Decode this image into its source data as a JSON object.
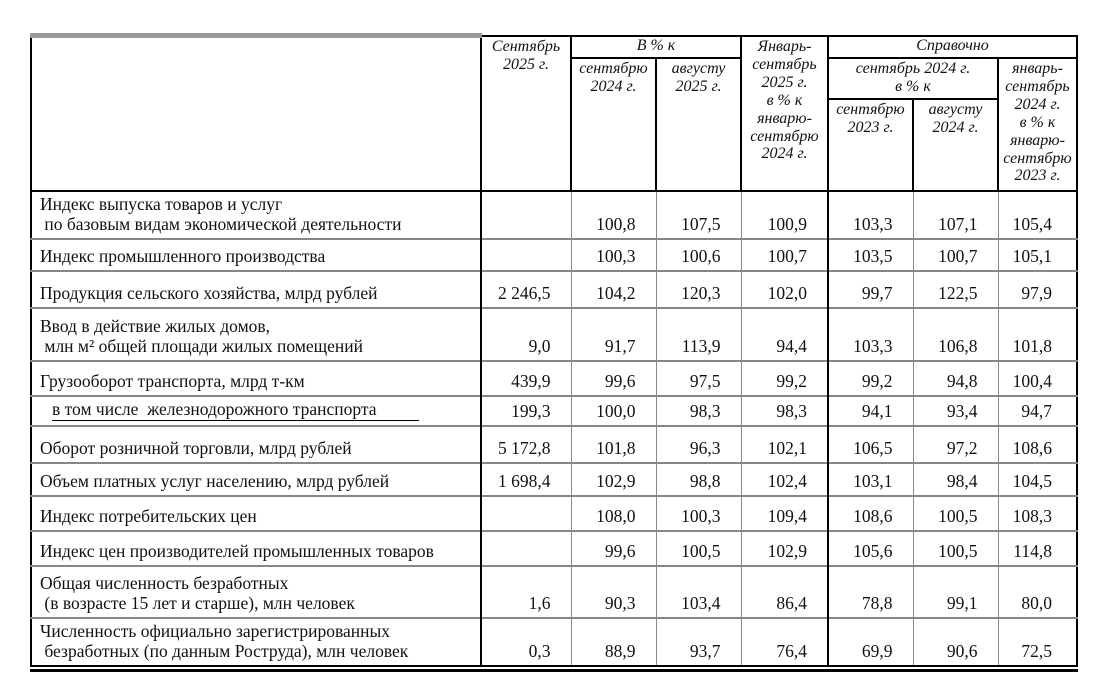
{
  "header": {
    "col_label": "",
    "col_september_2025": "Сентябрь\n2025 г.",
    "group_percent_to": "В % к",
    "col_to_september_2024": "сентябрю\n2024 г.",
    "col_to_august_2025": "августу\n2025 г.",
    "col_jan_sep_2025": "Январь-\nсентябрь\n2025 г.\nв % к\nянварю-\nсентябрю\n2024 г.",
    "group_reference": "Справочно",
    "group_september_2024_percent": "сентябрь 2024 г.\nв % к",
    "col_to_september_2023": "сентябрю\n2023 г.",
    "col_to_august_2024": "августу\n2024 г.",
    "col_jan_sep_2024": "январь-\nсентябрь\n2024 г.\nв % к\nянварю-\nсентябрю\n2023 г."
  },
  "table": {
    "rows": [
      {
        "label": "Индекс выпуска товаров и услуг\n по базовым видам экономической деятельности",
        "values": [
          "",
          "100,8",
          "107,5",
          "100,9",
          "103,3",
          "107,1",
          "105,4"
        ]
      },
      {
        "label": "Индекс промышленного производства",
        "values": [
          "",
          "100,3",
          "100,6",
          "100,7",
          "103,5",
          "100,7",
          "105,1"
        ]
      },
      {
        "label": "Продукция сельского хозяйства, млрд рублей",
        "values": [
          "2 246,5",
          "104,2",
          "120,3",
          "102,0",
          "99,7",
          "122,5",
          "97,9"
        ]
      },
      {
        "label": "Ввод в действие жилых домов,\n млн м² общей площади жилых помещений",
        "values": [
          "9,0",
          "91,7",
          "113,9",
          "94,4",
          "103,3",
          "106,8",
          "101,8"
        ]
      },
      {
        "label": "Грузооборот транспорта, млрд т-км",
        "values": [
          "439,9",
          "99,6",
          "97,5",
          "99,2",
          "99,2",
          "94,8",
          "100,4"
        ]
      },
      {
        "label": "в том числе  железнодорожного транспорта",
        "indent": true,
        "underline": true,
        "values": [
          "199,3",
          "100,0",
          "98,3",
          "98,3",
          "94,1",
          "93,4",
          "94,7"
        ]
      },
      {
        "label": "Оборот розничной торговли, млрд рублей",
        "values": [
          "5 172,8",
          "101,8",
          "96,3",
          "102,1",
          "106,5",
          "97,2",
          "108,6"
        ]
      },
      {
        "label": "Объем платных услуг населению, млрд рублей",
        "values": [
          "1 698,4",
          "102,9",
          "98,8",
          "102,4",
          "103,1",
          "98,4",
          "104,5"
        ]
      },
      {
        "label": "Индекс потребительских цен",
        "values": [
          "",
          "108,0",
          "100,3",
          "109,4",
          "108,6",
          "100,5",
          "108,3"
        ]
      },
      {
        "label": "Индекс цен производителей промышленных товаров",
        "values": [
          "",
          "99,6",
          "100,5",
          "102,9",
          "105,6",
          "100,5",
          "114,8"
        ]
      },
      {
        "label": "Общая численность безработных\n (в возрасте 15 лет и старше), млн человек",
        "values": [
          "1,6",
          "90,3",
          "103,4",
          "86,4",
          "78,8",
          "99,1",
          "80,0"
        ]
      },
      {
        "label": "Численность официально зарегистрированных\n безработных (по данным Роструда), млн человек",
        "values": [
          "0,3",
          "88,9",
          "93,7",
          "76,4",
          "69,9",
          "90,6",
          "72,5"
        ]
      }
    ]
  },
  "colors": {
    "grid_gray": "#878787",
    "border_black": "#000000"
  }
}
